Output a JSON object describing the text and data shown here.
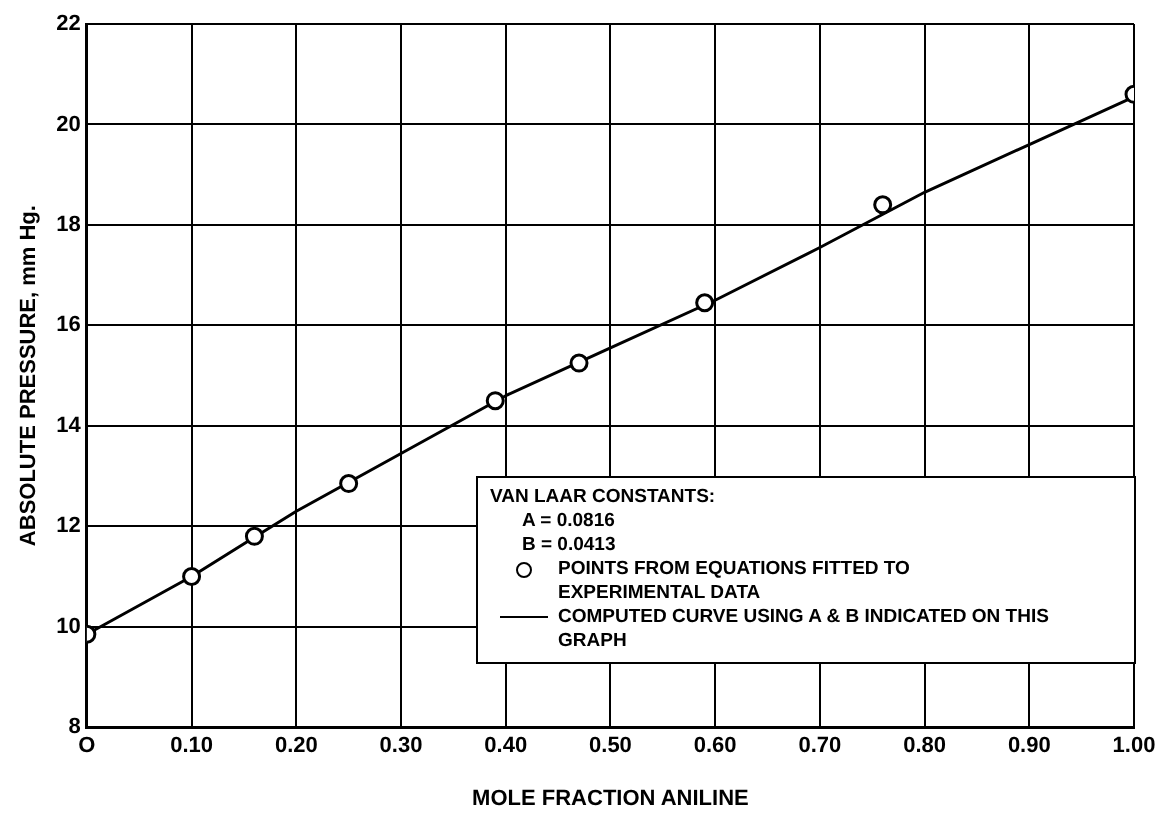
{
  "chart_data": {
    "type": "line",
    "xlabel": "MOLE FRACTION ANILINE",
    "ylabel": "ABSOLUTE PRESSURE, mm Hg.",
    "legend_title": "VAN LAAR CONSTANTS:",
    "annotations": [
      "A = 0.0816",
      "B = 0.0413"
    ],
    "xlim": [
      0,
      1
    ],
    "xticks": [
      {
        "value": 0,
        "label": "O"
      },
      {
        "value": 0.1,
        "label": "0.10"
      },
      {
        "value": 0.2,
        "label": "0.20"
      },
      {
        "value": 0.3,
        "label": "0.30"
      },
      {
        "value": 0.4,
        "label": "0.40"
      },
      {
        "value": 0.5,
        "label": "0.50"
      },
      {
        "value": 0.6,
        "label": "0.60"
      },
      {
        "value": 0.7,
        "label": "0.70"
      },
      {
        "value": 0.8,
        "label": "0.80"
      },
      {
        "value": 0.9,
        "label": "0.90"
      },
      {
        "value": 1,
        "label": "1.00"
      }
    ],
    "ylim": [
      8,
      22
    ],
    "yticks": [
      8,
      10,
      12,
      14,
      16,
      18,
      20,
      22
    ],
    "grid": true,
    "legend": "bottom right",
    "series": [
      {
        "name": "POINTS FROM EQUATIONS FITTED TO EXPERIMENTAL DATA",
        "type": "scatter",
        "marker": "circle",
        "color": "#000000",
        "x": [
          0,
          0.1,
          0.16,
          0.25,
          0.39,
          0.47,
          0.59,
          0.76,
          1.0
        ],
        "values": [
          9.85,
          11.0,
          11.8,
          12.85,
          14.5,
          15.25,
          16.45,
          18.4,
          20.6
        ]
      },
      {
        "name": "COMPUTED CURVE USING A & B INDICATED ON THIS GRAPH",
        "line_style": "solid",
        "color": "#000000",
        "x": [
          0,
          0.1,
          0.2,
          0.3,
          0.4,
          0.5,
          0.6,
          0.7,
          0.8,
          0.9,
          1.0
        ],
        "values": [
          9.85,
          11.0,
          12.3,
          13.45,
          14.6,
          15.55,
          16.5,
          17.55,
          18.65,
          19.6,
          20.55
        ]
      }
    ]
  }
}
